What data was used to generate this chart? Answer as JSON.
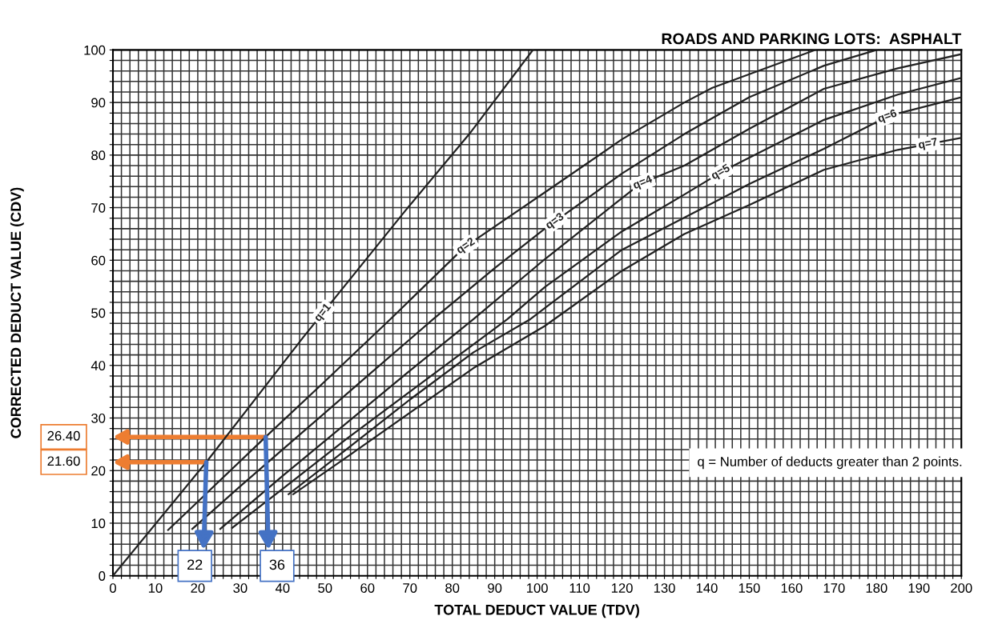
{
  "chart_data": {
    "type": "line",
    "title": "ROADS AND PARKING LOTS:  ASPHALT",
    "xlabel": "TOTAL DEDUCT VALUE (TDV)",
    "ylabel": "CORRECTED DEDUCT VALUE (CDV)",
    "xlim": [
      0,
      200
    ],
    "ylim": [
      0,
      100
    ],
    "xticks": [
      0,
      {
        "value": 2,
        "label": null
      },
      {
        "value": 4,
        "label": null
      },
      {
        "value": 6,
        "label": null
      },
      {
        "value": 8,
        "label": null
      },
      10,
      {
        "value": 12,
        "label": null
      },
      {
        "value": 14,
        "label": null
      },
      {
        "value": 16,
        "label": null
      },
      {
        "value": 18,
        "label": null
      },
      20,
      {
        "value": 22,
        "label": null
      },
      {
        "value": 24,
        "label": null
      },
      {
        "value": 26,
        "label": null
      },
      {
        "value": 28,
        "label": null
      },
      30,
      {
        "value": 32,
        "label": null
      },
      {
        "value": 34,
        "label": null
      },
      {
        "value": 36,
        "label": null
      },
      {
        "value": 38,
        "label": null
      },
      40,
      {
        "value": 42,
        "label": null
      },
      {
        "value": 44,
        "label": null
      },
      {
        "value": 46,
        "label": null
      },
      {
        "value": 48,
        "label": null
      },
      50,
      {
        "value": 52,
        "label": null
      },
      {
        "value": 54,
        "label": null
      },
      {
        "value": 56,
        "label": null
      },
      {
        "value": 58,
        "label": null
      },
      60,
      {
        "value": 62,
        "label": null
      },
      {
        "value": 64,
        "label": null
      },
      {
        "value": 66,
        "label": null
      },
      {
        "value": 68,
        "label": null
      },
      70,
      {
        "value": 72,
        "label": null
      },
      {
        "value": 74,
        "label": null
      },
      {
        "value": 76,
        "label": null
      },
      {
        "value": 78,
        "label": null
      },
      80,
      {
        "value": 82,
        "label": null
      },
      {
        "value": 84,
        "label": null
      },
      {
        "value": 86,
        "label": null
      },
      {
        "value": 88,
        "label": null
      },
      90,
      {
        "value": 92,
        "label": null
      },
      {
        "value": 94,
        "label": null
      },
      {
        "value": 96,
        "label": null
      },
      {
        "value": 98,
        "label": null
      },
      100,
      {
        "value": 102,
        "label": null
      },
      {
        "value": 104,
        "label": null
      },
      {
        "value": 106,
        "label": null
      },
      {
        "value": 108,
        "label": null
      },
      110,
      {
        "value": 112,
        "label": null
      },
      {
        "value": 114,
        "label": null
      },
      {
        "value": 116,
        "label": null
      },
      {
        "value": 118,
        "label": null
      },
      120,
      {
        "value": 122,
        "label": null
      },
      {
        "value": 124,
        "label": null
      },
      {
        "value": 126,
        "label": null
      },
      {
        "value": 128,
        "label": null
      },
      130,
      {
        "value": 132,
        "label": null
      },
      {
        "value": 134,
        "label": null
      },
      {
        "value": 136,
        "label": null
      },
      {
        "value": 138,
        "label": null
      },
      140,
      {
        "value": 142,
        "label": null
      },
      {
        "value": 144,
        "label": null
      },
      {
        "value": 146,
        "label": null
      },
      {
        "value": 148,
        "label": null
      },
      150,
      {
        "value": 152,
        "label": null
      },
      {
        "value": 154,
        "label": null
      },
      {
        "value": 156,
        "label": null
      },
      {
        "value": 158,
        "label": null
      },
      160,
      {
        "value": 162,
        "label": null
      },
      {
        "value": 164,
        "label": null
      },
      {
        "value": 166,
        "label": null
      },
      {
        "value": 168,
        "label": null
      },
      170,
      {
        "value": 172,
        "label": null
      },
      {
        "value": 174,
        "label": null
      },
      {
        "value": 176,
        "label": null
      },
      {
        "value": 178,
        "label": null
      },
      180,
      {
        "value": 182,
        "label": null
      },
      {
        "value": 184,
        "label": null
      },
      {
        "value": 186,
        "label": null
      },
      {
        "value": 188,
        "label": null
      },
      190,
      {
        "value": 192,
        "label": null
      },
      {
        "value": 194,
        "label": null
      },
      {
        "value": 196,
        "label": null
      },
      {
        "value": 198,
        "label": null
      },
      200
    ],
    "yticks": [
      0,
      {
        "value": 2,
        "label": null
      },
      {
        "value": 4,
        "label": null
      },
      {
        "value": 6,
        "label": null
      },
      {
        "value": 8,
        "label": null
      },
      10,
      {
        "value": 12,
        "label": null
      },
      {
        "value": 14,
        "label": null
      },
      {
        "value": 16,
        "label": null
      },
      {
        "value": 18,
        "label": null
      },
      20,
      {
        "value": 22,
        "label": null
      },
      {
        "value": 24,
        "label": null
      },
      {
        "value": 26,
        "label": null
      },
      {
        "value": 28,
        "label": null
      },
      30,
      {
        "value": 32,
        "label": null
      },
      {
        "value": 34,
        "label": null
      },
      {
        "value": 36,
        "label": null
      },
      {
        "value": 38,
        "label": null
      },
      40,
      {
        "value": 42,
        "label": null
      },
      {
        "value": 44,
        "label": null
      },
      {
        "value": 46,
        "label": null
      },
      {
        "value": 48,
        "label": null
      },
      50,
      {
        "value": 52,
        "label": null
      },
      {
        "value": 54,
        "label": null
      },
      {
        "value": 56,
        "label": null
      },
      {
        "value": 58,
        "label": null
      },
      60,
      {
        "value": 62,
        "label": null
      },
      {
        "value": 64,
        "label": null
      },
      {
        "value": 66,
        "label": null
      },
      {
        "value": 68,
        "label": null
      },
      70,
      {
        "value": 72,
        "label": null
      },
      {
        "value": 74,
        "label": null
      },
      {
        "value": 76,
        "label": null
      },
      {
        "value": 78,
        "label": null
      },
      80,
      {
        "value": 82,
        "label": null
      },
      {
        "value": 84,
        "label": null
      },
      {
        "value": 86,
        "label": null
      },
      {
        "value": 88,
        "label": null
      },
      90,
      {
        "value": 92,
        "label": null
      },
      {
        "value": 94,
        "label": null
      },
      {
        "value": 96,
        "label": null
      },
      {
        "value": 98,
        "label": null
      },
      100
    ],
    "grid": true,
    "legend": false,
    "marker": "none",
    "line_style": "solid",
    "series": [
      {
        "name": "q=1",
        "color": "#222222",
        "x": [
          0,
          22,
          45,
          69,
          84,
          99
        ],
        "values": [
          0,
          21.6,
          45.5,
          69.5,
          84,
          100
        ]
      },
      {
        "name": "q=2",
        "color": "#222222",
        "x": [
          13,
          36,
          50,
          65.4,
          82.9,
          101.8,
          120,
          134.7,
          141.3,
          165.6
        ],
        "values": [
          8.7,
          26.4,
          37,
          48.8,
          62.5,
          72.9,
          83,
          90,
          92.8,
          100
        ]
      },
      {
        "name": "q=3",
        "color": "#222222",
        "x": [
          18.7,
          30,
          45,
          60,
          75.5,
          90,
          101.8,
          120,
          134.7,
          150,
          167.6,
          180
        ],
        "values": [
          8.9,
          17,
          27.5,
          38,
          48.8,
          58.5,
          66,
          76.5,
          84,
          91,
          97,
          100
        ]
      },
      {
        "name": "q=4",
        "color": "#222222",
        "x": [
          25.3,
          40,
          55,
          70,
          85,
          101.8,
          124.2,
          134.7,
          150,
          167.6,
          185,
          200
        ],
        "values": [
          8.9,
          19,
          29,
          39,
          48.8,
          60.2,
          74.5,
          78,
          85,
          92.6,
          96.5,
          99.2
        ]
      },
      {
        "name": "q=5",
        "color": "#222222",
        "x": [
          28.1,
          40,
          55,
          75,
          93,
          101.8,
          120,
          134.7,
          143.9,
          167.6,
          185,
          200
        ],
        "values": [
          9.1,
          16.5,
          26,
          38,
          48.8,
          54.9,
          65.5,
          72.5,
          77,
          86.7,
          91.5,
          94.7
        ]
      },
      {
        "name": "q=6",
        "color": "#222222",
        "x": [
          41.4,
          55,
          70,
          85,
          98.4,
          101.8,
          120,
          134.7,
          150,
          167.6,
          183,
          200
        ],
        "values": [
          15.5,
          24,
          33.5,
          42.5,
          48.8,
          50.9,
          62,
          68.1,
          74.5,
          81.2,
          87.5,
          91
        ]
      },
      {
        "name": "q=7",
        "color": "#222222",
        "x": [
          42.5,
          55,
          70,
          85,
          101.8,
          120,
          134.7,
          150,
          167.6,
          185,
          200
        ],
        "values": [
          15.5,
          22.5,
          31,
          39.5,
          47.5,
          58,
          65,
          70.5,
          77.2,
          81,
          83.3
        ]
      }
    ],
    "annotations": [
      "26.40",
      "21.60",
      {
        "text": "36",
        "x": 36,
        "y": 26.4
      },
      {
        "text": "22",
        "x": 22,
        "y": 21.6
      },
      "q = Number of deducts greater than 2 points."
    ]
  }
}
